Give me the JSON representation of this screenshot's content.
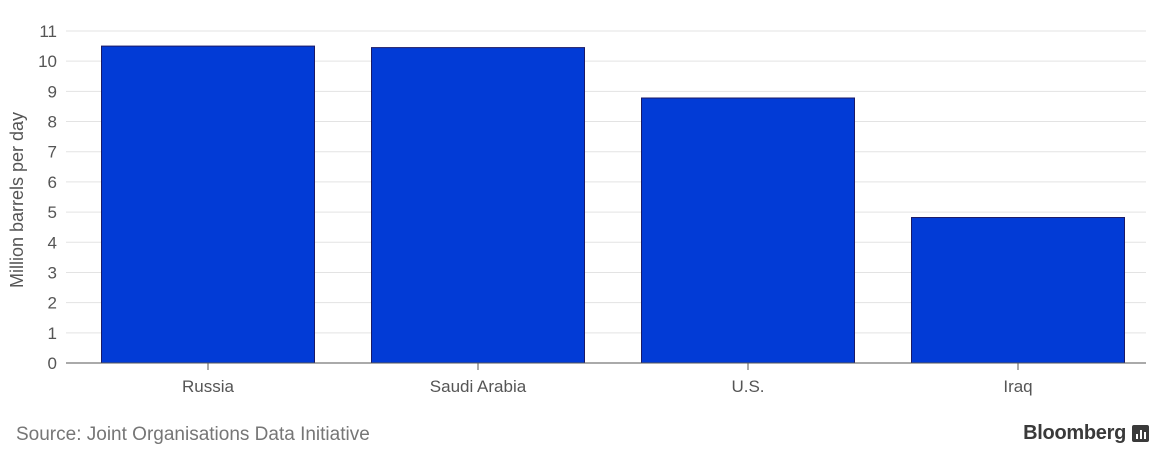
{
  "chart_data": {
    "type": "bar",
    "categories": [
      "Russia",
      "Saudi Arabia",
      "U.S.",
      "Iraq"
    ],
    "values": [
      10.5,
      10.45,
      8.78,
      4.82
    ],
    "title": "",
    "xlabel": "",
    "ylabel": "Million barrels per day",
    "ylim": [
      0,
      11
    ],
    "yticks": [
      0,
      1,
      2,
      3,
      4,
      5,
      6,
      7,
      8,
      9,
      10,
      11
    ],
    "grid": true,
    "bar_color": "#023bd6",
    "bar_edge_color": "#1a1a66"
  },
  "footer": {
    "source": "Source: Joint Organisations Data Initiative",
    "brand": "Bloomberg"
  }
}
